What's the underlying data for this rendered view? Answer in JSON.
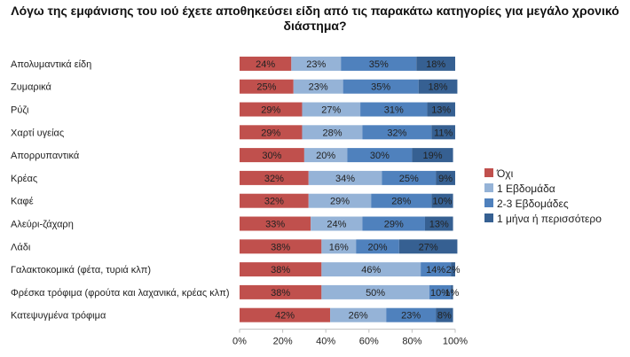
{
  "chart_data": {
    "type": "bar",
    "orientation": "horizontal",
    "stacked": "percent",
    "title": "Λόγω της εμφάνισης του ιού έχετε αποθηκεύσει είδη από τις παρακάτω κατηγορίες για μεγάλο χρονικό διάστημα?",
    "categories": [
      "Απολυμαντικά είδη",
      "Ζυμαρικά",
      "Ρύζι",
      "Χαρτί υγείας",
      "Απορρυπαντικά",
      "Κρέας",
      "Καφέ",
      "Αλεύρι-ζάχαρη",
      "Λάδι",
      "Γαλακτοκομικά (φέτα, τυριά κλπ)",
      "Φρέσκα τρόφιμα (φρούτα και λαχανικά, κρέας κλπ)",
      "Κατεψυγμένα τρόφιμα"
    ],
    "series": [
      {
        "name": "Όχι",
        "color": "#c0504d",
        "values": [
          24,
          25,
          29,
          29,
          30,
          32,
          32,
          33,
          38,
          38,
          38,
          42
        ]
      },
      {
        "name": "1 Εβδομάδα",
        "color": "#95b3d7",
        "values": [
          23,
          23,
          27,
          28,
          20,
          34,
          29,
          24,
          16,
          46,
          50,
          26
        ]
      },
      {
        "name": "2-3 Εβδομάδες",
        "color": "#4f81bd",
        "values": [
          35,
          35,
          31,
          32,
          30,
          25,
          28,
          29,
          20,
          14,
          10,
          23
        ]
      },
      {
        "name": "1 μήνα ή περισσότερο",
        "color": "#366092",
        "values": [
          18,
          18,
          13,
          11,
          19,
          9,
          10,
          13,
          27,
          2,
          1,
          8
        ]
      }
    ],
    "xlim": [
      0,
      100
    ],
    "x_ticks": [
      "0%",
      "20%",
      "40%",
      "60%",
      "80%",
      "100%"
    ],
    "legend_position": "right",
    "grid": false
  }
}
